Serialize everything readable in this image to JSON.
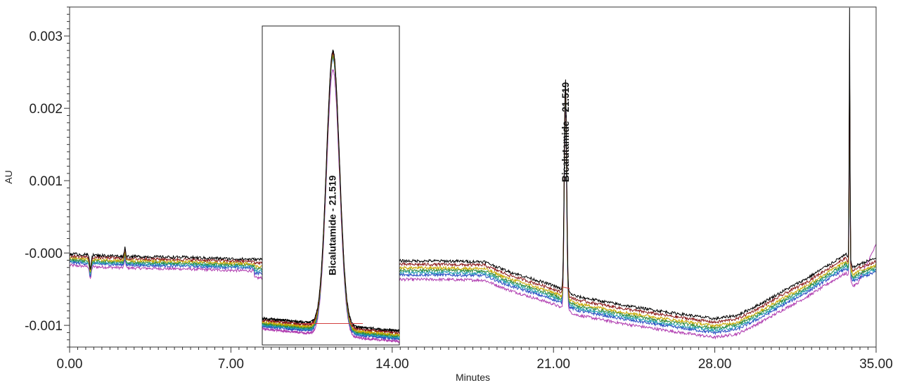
{
  "chart_data": {
    "type": "line",
    "title": "",
    "xlabel": "Minutes",
    "ylabel": "AU",
    "xlim": [
      0,
      35
    ],
    "ylim": [
      -0.0013,
      0.0034
    ],
    "x_ticks": [
      0,
      7,
      14,
      21,
      28,
      35
    ],
    "x_tick_labels": [
      "0.00",
      "7.00",
      "14.00",
      "21.00",
      "28.00",
      "35.00"
    ],
    "y_ticks": [
      -0.001,
      0,
      0.001,
      0.002,
      0.003
    ],
    "y_tick_labels": [
      "-0.001",
      "-0.000",
      "0.001",
      "0.002",
      "0.003"
    ],
    "grid": false,
    "legend": "none",
    "series_colors": [
      "#000000",
      "#8b1a1a",
      "#c8a800",
      "#2e8b3a",
      "#1f9bb0",
      "#2a4cc4",
      "#b03cb0"
    ],
    "series_offsets": [
      0,
      -3e-05,
      -6e-05,
      -8e-05,
      -0.0001,
      -0.00012,
      -0.00016
    ],
    "baseline": {
      "x": [
        0,
        1,
        3,
        5,
        7,
        8.5,
        14.5,
        16,
        18,
        19,
        21,
        22,
        24,
        26,
        28,
        29,
        30,
        31,
        32,
        33,
        33.7,
        34,
        34.3,
        35
      ],
      "y": [
        -1e-05,
        -3e-05,
        -5e-05,
        -6e-05,
        -8e-05,
        -9e-05,
        -0.00011,
        -0.00011,
        -0.00012,
        -0.00025,
        -0.00045,
        -0.0006,
        -0.00072,
        -0.00082,
        -0.00091,
        -0.00086,
        -0.0007,
        -0.00052,
        -0.00035,
        -0.00015,
        -2e-05,
        -0.0002,
        -0.00015,
        -7e-05
      ]
    },
    "main_peak": {
      "x": 21.519,
      "height": 0.00295,
      "label": "Bicalutamide - 21.519"
    },
    "system_peak": {
      "x": 33.85,
      "height": 0.0033
    },
    "inset": {
      "xlim": [
        20.9,
        22.1
      ],
      "ylim": [
        -0.00104,
        0.00327
      ],
      "peak_label": "Bicalutamide - 21.519",
      "baseline_start": -0.00068,
      "baseline_end": -0.00085,
      "integration_level": -0.00075
    }
  }
}
